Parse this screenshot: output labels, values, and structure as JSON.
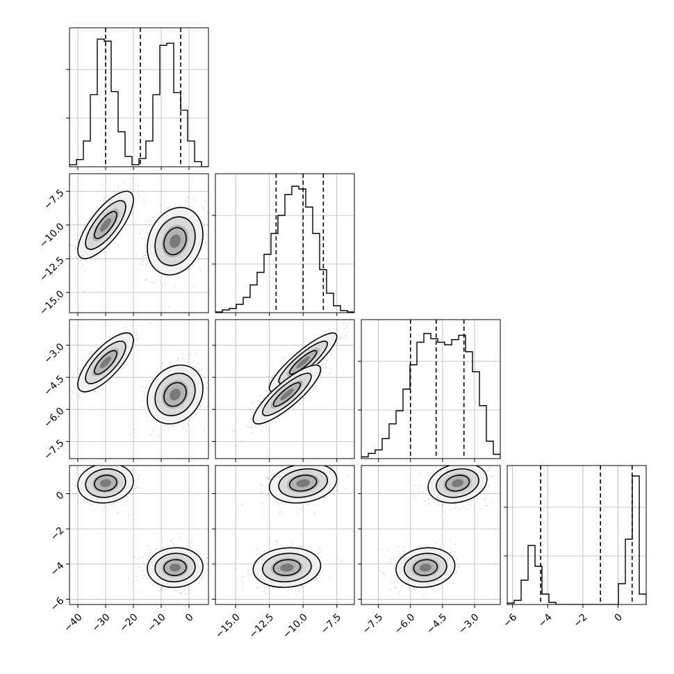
{
  "chart_data": {
    "type": "corner",
    "grid": true,
    "parameters": [
      {
        "range": [
          -43,
          7
        ],
        "ticks": [
          -40,
          -30,
          -20,
          -10,
          0
        ],
        "tick_labels": [
          "−40",
          "−30",
          "−20",
          "−10",
          "0"
        ],
        "histogram": {
          "bin_start": -43,
          "bin_width": 2.5,
          "counts": [
            2,
            7,
            25,
            70,
            124,
            122,
            73,
            34,
            10,
            2,
            8,
            25,
            70,
            118,
            120,
            72,
            55,
            25,
            5,
            0
          ],
          "max": 135
        },
        "quantiles": [
          -30,
          -17.5,
          -3
        ]
      },
      {
        "range": [
          -16.5,
          -6.2
        ],
        "ticks": [
          -15.0,
          -12.5,
          -10.0,
          -7.5
        ],
        "tick_labels": [
          "−15.0",
          "−12.5",
          "−10.0",
          "−7.5"
        ],
        "histogram": {
          "bin_start": -16.5,
          "bin_width": 0.515,
          "counts": [
            1,
            4,
            6,
            12,
            22,
            40,
            58,
            84,
            114,
            140,
            170,
            182,
            178,
            152,
            114,
            62,
            28,
            10,
            3,
            1
          ],
          "max": 200
        },
        "quantiles": [
          -12.0,
          -10.0,
          -8.5
        ]
      },
      {
        "range": [
          -8.3,
          -1.8
        ],
        "ticks": [
          -7.5,
          -6.0,
          -4.5,
          -3.0
        ],
        "tick_labels": [
          "−7.5",
          "−6.0",
          "−4.5",
          "−3.0"
        ],
        "histogram": {
          "bin_start": -8.3,
          "bin_width": 0.325,
          "counts": [
            2,
            6,
            10,
            23,
            40,
            55,
            80,
            108,
            134,
            144,
            138,
            134,
            131,
            137,
            142,
            123,
            100,
            61,
            20,
            5
          ],
          "max": 160
        },
        "quantiles": [
          -6.0,
          -4.8,
          -3.5
        ]
      },
      {
        "range": [
          -6.3,
          1.6
        ],
        "ticks": [
          -6,
          -4,
          -2,
          0
        ],
        "tick_labels": [
          "−6",
          "−4",
          "−2",
          "0"
        ],
        "histogram": {
          "bin_start": -6.3,
          "bin_width": 0.395,
          "counts": [
            2,
            6,
            35,
            85,
            55,
            15,
            3,
            0,
            0,
            0,
            0,
            0,
            0,
            0,
            0,
            0,
            30,
            94,
            185,
            15
          ],
          "max": 200
        },
        "quantiles": [
          -4.4,
          -1.0,
          0.8
        ]
      }
    ],
    "clusters": [
      [
        -30,
        -10.0,
        -3.8,
        0.6
      ],
      [
        -5,
        -11.2,
        -5.3,
        -4.2
      ]
    ],
    "cluster_sigma": [
      4,
      1.0,
      0.55,
      0.45
    ],
    "correlations": {
      "0-1": [
        0.75,
        0.2
      ],
      "0-2": [
        0.75,
        0.2
      ],
      "1-2": [
        0.88,
        0.85
      ],
      "0-3": [
        0.1,
        0.05
      ],
      "1-3": [
        0.2,
        0.1
      ],
      "2-3": [
        0.2,
        0.1
      ]
    },
    "contour_levels": [
      1.0,
      1.8,
      2.5
    ]
  }
}
